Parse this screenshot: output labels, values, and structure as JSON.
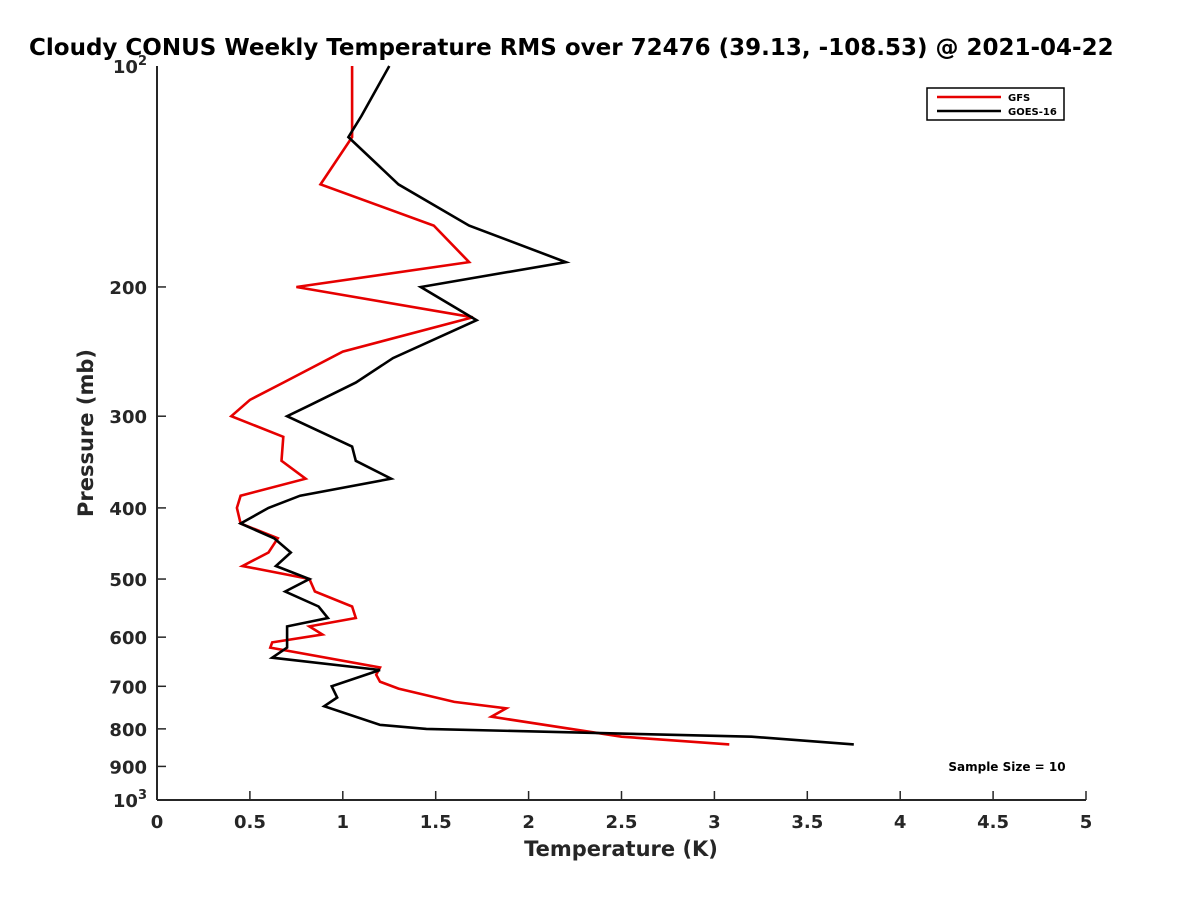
{
  "chart_data": {
    "type": "line",
    "title": "Cloudy CONUS Weekly Temperature RMS over 72476 (39.13, -108.53) @ 2021-04-22",
    "xlabel": "Temperature (K)",
    "ylabel": "Pressure (mb)",
    "xlim": [
      0,
      5
    ],
    "ylim": [
      100,
      1000
    ],
    "y_scale": "log",
    "y_reversed": true,
    "x_ticks": [
      {
        "value": 0,
        "label": "0"
      },
      {
        "value": 0.5,
        "label": "0.5"
      },
      {
        "value": 1,
        "label": "1"
      },
      {
        "value": 1.5,
        "label": "1.5"
      },
      {
        "value": 2,
        "label": "2"
      },
      {
        "value": 2.5,
        "label": "2.5"
      },
      {
        "value": 3,
        "label": "3"
      },
      {
        "value": 3.5,
        "label": "3.5"
      },
      {
        "value": 4,
        "label": "4"
      },
      {
        "value": 4.5,
        "label": "4.5"
      },
      {
        "value": 5,
        "label": "5"
      }
    ],
    "y_ticks": [
      {
        "value": 200,
        "label": "200"
      },
      {
        "value": 300,
        "label": "300"
      },
      {
        "value": 400,
        "label": "400"
      },
      {
        "value": 500,
        "label": "500"
      },
      {
        "value": 600,
        "label": "600"
      },
      {
        "value": 700,
        "label": "700"
      },
      {
        "value": 800,
        "label": "800"
      },
      {
        "value": 900,
        "label": "900"
      }
    ],
    "y_pow_ticks": [
      {
        "value": 100,
        "base": "10",
        "exp": "2"
      },
      {
        "value": 1000,
        "base": "10",
        "exp": "3"
      }
    ],
    "grid": false,
    "legend": {
      "placement": "top-right"
    },
    "annotation": "Sample Size = 10",
    "series": [
      {
        "name": "GFS",
        "color": "#e60000",
        "points": [
          [
            1.05,
            100
          ],
          [
            1.05,
            115
          ],
          [
            1.05,
            125
          ],
          [
            0.88,
            145
          ],
          [
            1.49,
            165
          ],
          [
            1.68,
            185
          ],
          [
            0.75,
            200
          ],
          [
            1.7,
            220
          ],
          [
            1.0,
            245
          ],
          [
            0.68,
            270
          ],
          [
            0.5,
            285
          ],
          [
            0.4,
            300
          ],
          [
            0.68,
            320
          ],
          [
            0.67,
            345
          ],
          [
            0.8,
            365
          ],
          [
            0.45,
            385
          ],
          [
            0.43,
            400
          ],
          [
            0.45,
            420
          ],
          [
            0.65,
            440
          ],
          [
            0.6,
            460
          ],
          [
            0.46,
            480
          ],
          [
            0.82,
            500
          ],
          [
            0.85,
            520
          ],
          [
            1.05,
            545
          ],
          [
            1.07,
            565
          ],
          [
            0.82,
            580
          ],
          [
            0.89,
            595
          ],
          [
            0.62,
            610
          ],
          [
            0.61,
            620
          ],
          [
            1.2,
            660
          ],
          [
            1.18,
            675
          ],
          [
            1.2,
            690
          ],
          [
            1.3,
            705
          ],
          [
            1.6,
            735
          ],
          [
            1.88,
            750
          ],
          [
            1.8,
            770
          ],
          [
            2.5,
            820
          ],
          [
            3.08,
            840
          ]
        ]
      },
      {
        "name": "GOES-16",
        "color": "#000000",
        "points": [
          [
            1.25,
            100
          ],
          [
            1.1,
            117
          ],
          [
            1.03,
            125
          ],
          [
            1.3,
            145
          ],
          [
            1.68,
            165
          ],
          [
            2.2,
            185
          ],
          [
            1.42,
            200
          ],
          [
            1.72,
            222
          ],
          [
            1.27,
            250
          ],
          [
            1.07,
            270
          ],
          [
            0.82,
            290
          ],
          [
            0.7,
            300
          ],
          [
            1.05,
            330
          ],
          [
            1.07,
            345
          ],
          [
            1.26,
            365
          ],
          [
            0.77,
            385
          ],
          [
            0.6,
            400
          ],
          [
            0.45,
            420
          ],
          [
            0.63,
            440
          ],
          [
            0.72,
            460
          ],
          [
            0.64,
            480
          ],
          [
            0.82,
            500
          ],
          [
            0.69,
            520
          ],
          [
            0.87,
            545
          ],
          [
            0.92,
            565
          ],
          [
            0.7,
            580
          ],
          [
            0.7,
            600
          ],
          [
            0.7,
            620
          ],
          [
            0.62,
            640
          ],
          [
            1.2,
            665
          ],
          [
            0.94,
            700
          ],
          [
            0.97,
            725
          ],
          [
            0.9,
            745
          ],
          [
            1.2,
            790
          ],
          [
            1.45,
            800
          ],
          [
            3.2,
            820
          ],
          [
            3.75,
            840
          ]
        ]
      }
    ]
  }
}
